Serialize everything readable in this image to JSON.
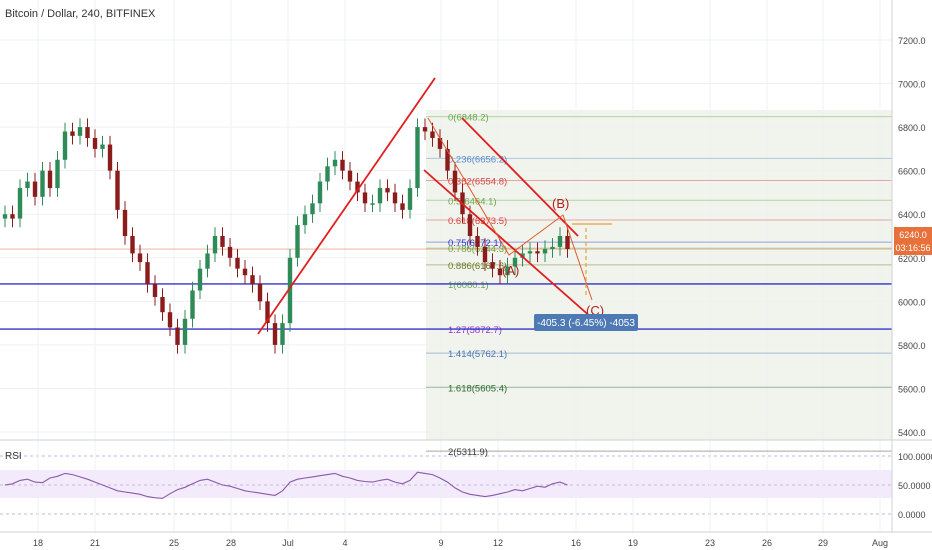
{
  "header": {
    "title": "Bitcoin / Dollar, 240, BITFINEX"
  },
  "rsi_pane": {
    "label": "RSI"
  },
  "measure_label": "-405.3 (-6.45%) -4053",
  "price_badge": {
    "price": "6240.0",
    "countdown": "03:16:56",
    "color": "#e8703a"
  },
  "colors": {
    "up": "#2e8b57",
    "down": "#8b1c1c",
    "trend": "#e01e1e",
    "hline": "#3333cc",
    "rsi": "#8a5aa6"
  },
  "chart_data": {
    "type": "candlestick",
    "price_axis": {
      "ticks": [
        7200,
        7000,
        6800,
        6600,
        6400,
        6200,
        6000,
        5800,
        5600,
        5400
      ],
      "labels": [
        "7200.0",
        "7000.0",
        "6800.0",
        "6600.0",
        "6400.0",
        "6200.0",
        "6000.0",
        "5800.0",
        "5600.0",
        "5400.0"
      ],
      "range": [
        5240,
        7420
      ]
    },
    "rsi_axis": {
      "ticks": [
        100,
        50,
        0
      ],
      "labels": [
        "100.0000",
        "50.0000",
        "0.0000"
      ],
      "range": [
        -20,
        105
      ]
    },
    "time_axis": {
      "labels": [
        "18",
        "21",
        "25",
        "28",
        "Jul",
        "4",
        "9",
        "12",
        "16",
        "19",
        "23",
        "26",
        "29",
        "Aug"
      ]
    },
    "candles_close": [
      6400,
      6380,
      6520,
      6550,
      6480,
      6600,
      6520,
      6650,
      6780,
      6760,
      6800,
      6750,
      6700,
      6720,
      6600,
      6420,
      6300,
      6220,
      6180,
      6080,
      6020,
      5950,
      5880,
      5800,
      5920,
      6050,
      6150,
      6220,
      6300,
      6250,
      6200,
      6150,
      6120,
      6080,
      6000,
      5900,
      5800,
      5900,
      6200,
      6350,
      6400,
      6450,
      6550,
      6620,
      6650,
      6600,
      6550,
      6500,
      6450,
      6450,
      6520,
      6500,
      6450,
      6420,
      6520,
      6800,
      6780,
      6750,
      6700,
      6600,
      6500,
      6400,
      6300,
      6250,
      6180,
      6150,
      6120,
      6160,
      6200,
      6220,
      6230,
      6220,
      6240,
      6250,
      6300,
      6240
    ],
    "horizontal_lines": [
      6080.1,
      5872.7
    ],
    "fib_levels": [
      {
        "label": "0(6848.2)",
        "price": 6848.2,
        "color": "#6aa84f"
      },
      {
        "label": "0.236(6656.2)",
        "price": 6656.2,
        "color": "#5b8ccf"
      },
      {
        "label": "0.382(6554.8)",
        "price": 6554.8,
        "color": "#d64545"
      },
      {
        "label": "0.5(6464.1)",
        "price": 6464.1,
        "color": "#6aa84f"
      },
      {
        "label": "0.618(6373.5)",
        "price": 6373.5,
        "color": "#d64545"
      },
      {
        "label": "0.75(6272.1)",
        "price": 6272.1,
        "color": "#3333cc"
      },
      {
        "label": "0.786(6244.3)",
        "price": 6244.3,
        "color": "#6aa84f"
      },
      {
        "label": "0.886(6167.6)",
        "price": 6167.6,
        "color": "#6a7a2a"
      },
      {
        "label": "1(6080.1)",
        "price": 6080.1,
        "color": "#6aa84f"
      },
      {
        "label": "1.27(5872.7)",
        "price": 5872.7,
        "color": "#9b30d9"
      },
      {
        "label": "1.414(5762.1)",
        "price": 5762.1,
        "color": "#4a74b8"
      },
      {
        "label": "1.618(5605.4)",
        "price": 5605.4,
        "color": "#2e6b2e"
      },
      {
        "label": "2(5311.9)",
        "price": 5311.9,
        "color": "#3a3a3a"
      }
    ],
    "wave_labels": [
      "(A)",
      "(B)",
      "(C)"
    ],
    "rsi_values": [
      50,
      52,
      58,
      60,
      55,
      54,
      62,
      65,
      70,
      68,
      64,
      60,
      55,
      50,
      45,
      40,
      38,
      36,
      34,
      30,
      28,
      27,
      35,
      42,
      46,
      52,
      58,
      60,
      55,
      50,
      48,
      44,
      40,
      38,
      36,
      34,
      32,
      40,
      55,
      60,
      62,
      64,
      66,
      68,
      70,
      65,
      62,
      58,
      56,
      55,
      58,
      60,
      55,
      52,
      58,
      72,
      70,
      68,
      62,
      55,
      45,
      38,
      34,
      32,
      30,
      32,
      35,
      38,
      42,
      40,
      44,
      48,
      46,
      52,
      55,
      50
    ]
  }
}
